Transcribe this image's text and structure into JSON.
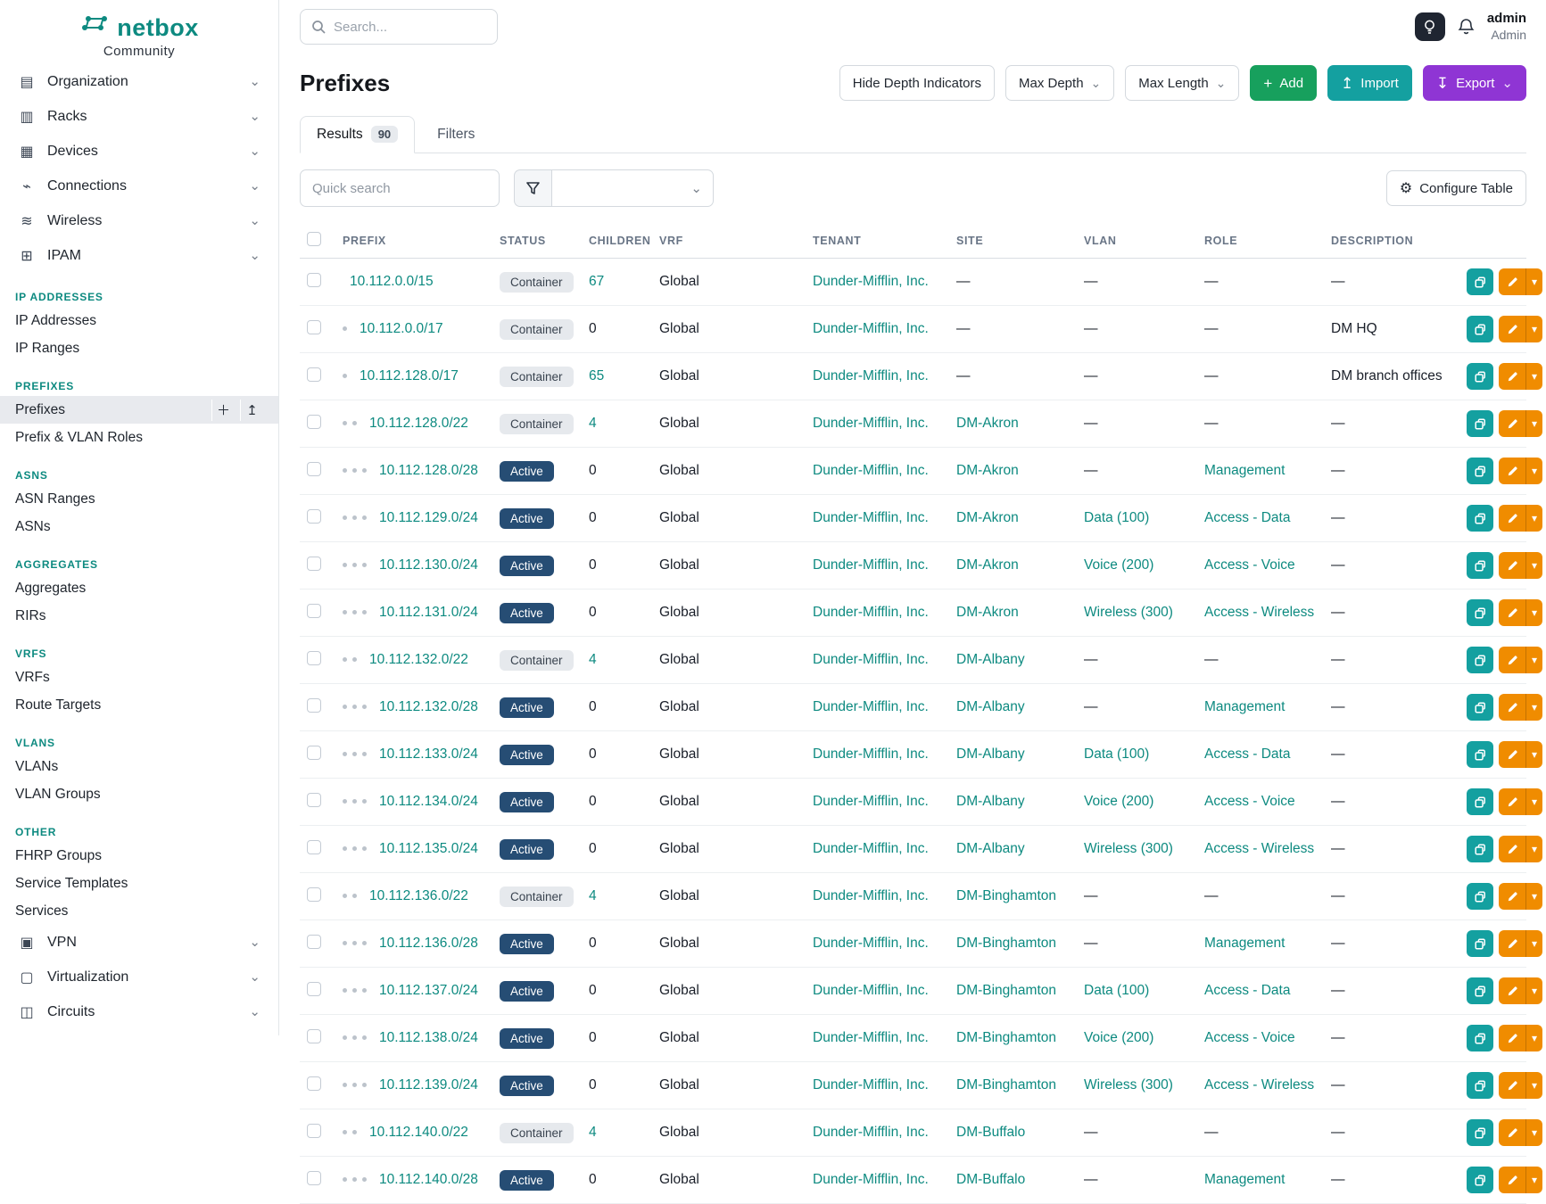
{
  "brand": {
    "name": "netbox",
    "tagline": "Community"
  },
  "topbar": {
    "search_placeholder": "Search...",
    "user_name": "admin",
    "user_role": "Admin"
  },
  "sidebar": {
    "nav_top": [
      {
        "label": "Organization",
        "icon": "organization"
      },
      {
        "label": "Racks",
        "icon": "racks"
      },
      {
        "label": "Devices",
        "icon": "devices"
      },
      {
        "label": "Connections",
        "icon": "connections"
      },
      {
        "label": "Wireless",
        "icon": "wireless"
      },
      {
        "label": "IPAM",
        "icon": "ipam"
      }
    ],
    "sections": [
      {
        "header": "IP ADDRESSES",
        "items": [
          {
            "label": "IP Addresses"
          },
          {
            "label": "IP Ranges"
          }
        ]
      },
      {
        "header": "PREFIXES",
        "items": [
          {
            "label": "Prefixes",
            "active": true
          },
          {
            "label": "Prefix & VLAN Roles"
          }
        ]
      },
      {
        "header": "ASNS",
        "items": [
          {
            "label": "ASN Ranges"
          },
          {
            "label": "ASNs"
          }
        ]
      },
      {
        "header": "AGGREGATES",
        "items": [
          {
            "label": "Aggregates"
          },
          {
            "label": "RIRs"
          }
        ]
      },
      {
        "header": "VRFS",
        "items": [
          {
            "label": "VRFs"
          },
          {
            "label": "Route Targets"
          }
        ]
      },
      {
        "header": "VLANS",
        "items": [
          {
            "label": "VLANs"
          },
          {
            "label": "VLAN Groups"
          }
        ]
      },
      {
        "header": "OTHER",
        "items": [
          {
            "label": "FHRP Groups"
          },
          {
            "label": "Service Templates"
          },
          {
            "label": "Services"
          }
        ]
      }
    ],
    "nav_bottom": [
      {
        "label": "VPN",
        "icon": "vpn"
      },
      {
        "label": "Virtualization",
        "icon": "virtualization"
      },
      {
        "label": "Circuits",
        "icon": "circuits"
      }
    ],
    "icon_glyphs": {
      "organization": "▤",
      "racks": "▥",
      "devices": "▦",
      "connections": "⌁",
      "wireless": "≋",
      "ipam": "⊞",
      "vpn": "▣",
      "virtualization": "▢",
      "circuits": "◫"
    }
  },
  "page": {
    "title": "Prefixes",
    "hide_depth_label": "Hide Depth Indicators",
    "max_depth_label": "Max Depth",
    "max_length_label": "Max Length",
    "add_label": "Add",
    "import_label": "Import",
    "export_label": "Export",
    "tabs": {
      "results_label": "Results",
      "results_count": "90",
      "filters_label": "Filters"
    },
    "quick_search_placeholder": "Quick search",
    "configure_table_label": "Configure Table"
  },
  "table": {
    "columns": [
      "PREFIX",
      "STATUS",
      "CHILDREN",
      "VRF",
      "TENANT",
      "SITE",
      "VLAN",
      "ROLE",
      "DESCRIPTION"
    ],
    "rows": [
      {
        "depth": 0,
        "prefix": "10.112.0.0/15",
        "status": "Container",
        "children": "67",
        "vrf": "Global",
        "tenant": "Dunder-Mifflin, Inc.",
        "site": "—",
        "vlan": "—",
        "role": "—",
        "description": "—"
      },
      {
        "depth": 1,
        "prefix": "10.112.0.0/17",
        "status": "Container",
        "children": "0",
        "vrf": "Global",
        "tenant": "Dunder-Mifflin, Inc.",
        "site": "—",
        "vlan": "—",
        "role": "—",
        "description": "DM HQ"
      },
      {
        "depth": 1,
        "prefix": "10.112.128.0/17",
        "status": "Container",
        "children": "65",
        "vrf": "Global",
        "tenant": "Dunder-Mifflin, Inc.",
        "site": "—",
        "vlan": "—",
        "role": "—",
        "description": "DM branch offices"
      },
      {
        "depth": 2,
        "prefix": "10.112.128.0/22",
        "status": "Container",
        "children": "4",
        "vrf": "Global",
        "tenant": "Dunder-Mifflin, Inc.",
        "site": "DM-Akron",
        "vlan": "—",
        "role": "—",
        "description": "—"
      },
      {
        "depth": 3,
        "prefix": "10.112.128.0/28",
        "status": "Active",
        "children": "0",
        "vrf": "Global",
        "tenant": "Dunder-Mifflin, Inc.",
        "site": "DM-Akron",
        "vlan": "—",
        "role": "Management",
        "description": "—"
      },
      {
        "depth": 3,
        "prefix": "10.112.129.0/24",
        "status": "Active",
        "children": "0",
        "vrf": "Global",
        "tenant": "Dunder-Mifflin, Inc.",
        "site": "DM-Akron",
        "vlan": "Data (100)",
        "role": "Access - Data",
        "description": "—"
      },
      {
        "depth": 3,
        "prefix": "10.112.130.0/24",
        "status": "Active",
        "children": "0",
        "vrf": "Global",
        "tenant": "Dunder-Mifflin, Inc.",
        "site": "DM-Akron",
        "vlan": "Voice (200)",
        "role": "Access - Voice",
        "description": "—"
      },
      {
        "depth": 3,
        "prefix": "10.112.131.0/24",
        "status": "Active",
        "children": "0",
        "vrf": "Global",
        "tenant": "Dunder-Mifflin, Inc.",
        "site": "DM-Akron",
        "vlan": "Wireless (300)",
        "role": "Access - Wireless",
        "description": "—"
      },
      {
        "depth": 2,
        "prefix": "10.112.132.0/22",
        "status": "Container",
        "children": "4",
        "vrf": "Global",
        "tenant": "Dunder-Mifflin, Inc.",
        "site": "DM-Albany",
        "vlan": "—",
        "role": "—",
        "description": "—"
      },
      {
        "depth": 3,
        "prefix": "10.112.132.0/28",
        "status": "Active",
        "children": "0",
        "vrf": "Global",
        "tenant": "Dunder-Mifflin, Inc.",
        "site": "DM-Albany",
        "vlan": "—",
        "role": "Management",
        "description": "—"
      },
      {
        "depth": 3,
        "prefix": "10.112.133.0/24",
        "status": "Active",
        "children": "0",
        "vrf": "Global",
        "tenant": "Dunder-Mifflin, Inc.",
        "site": "DM-Albany",
        "vlan": "Data (100)",
        "role": "Access - Data",
        "description": "—"
      },
      {
        "depth": 3,
        "prefix": "10.112.134.0/24",
        "status": "Active",
        "children": "0",
        "vrf": "Global",
        "tenant": "Dunder-Mifflin, Inc.",
        "site": "DM-Albany",
        "vlan": "Voice (200)",
        "role": "Access - Voice",
        "description": "—"
      },
      {
        "depth": 3,
        "prefix": "10.112.135.0/24",
        "status": "Active",
        "children": "0",
        "vrf": "Global",
        "tenant": "Dunder-Mifflin, Inc.",
        "site": "DM-Albany",
        "vlan": "Wireless (300)",
        "role": "Access - Wireless",
        "description": "—"
      },
      {
        "depth": 2,
        "prefix": "10.112.136.0/22",
        "status": "Container",
        "children": "4",
        "vrf": "Global",
        "tenant": "Dunder-Mifflin, Inc.",
        "site": "DM-Binghamton",
        "vlan": "—",
        "role": "—",
        "description": "—"
      },
      {
        "depth": 3,
        "prefix": "10.112.136.0/28",
        "status": "Active",
        "children": "0",
        "vrf": "Global",
        "tenant": "Dunder-Mifflin, Inc.",
        "site": "DM-Binghamton",
        "vlan": "—",
        "role": "Management",
        "description": "—"
      },
      {
        "depth": 3,
        "prefix": "10.112.137.0/24",
        "status": "Active",
        "children": "0",
        "vrf": "Global",
        "tenant": "Dunder-Mifflin, Inc.",
        "site": "DM-Binghamton",
        "vlan": "Data (100)",
        "role": "Access - Data",
        "description": "—"
      },
      {
        "depth": 3,
        "prefix": "10.112.138.0/24",
        "status": "Active",
        "children": "0",
        "vrf": "Global",
        "tenant": "Dunder-Mifflin, Inc.",
        "site": "DM-Binghamton",
        "vlan": "Voice (200)",
        "role": "Access - Voice",
        "description": "—"
      },
      {
        "depth": 3,
        "prefix": "10.112.139.0/24",
        "status": "Active",
        "children": "0",
        "vrf": "Global",
        "tenant": "Dunder-Mifflin, Inc.",
        "site": "DM-Binghamton",
        "vlan": "Wireless (300)",
        "role": "Access - Wireless",
        "description": "—"
      },
      {
        "depth": 2,
        "prefix": "10.112.140.0/22",
        "status": "Container",
        "children": "4",
        "vrf": "Global",
        "tenant": "Dunder-Mifflin, Inc.",
        "site": "DM-Buffalo",
        "vlan": "—",
        "role": "—",
        "description": "—"
      },
      {
        "depth": 3,
        "prefix": "10.112.140.0/28",
        "status": "Active",
        "children": "0",
        "vrf": "Global",
        "tenant": "Dunder-Mifflin, Inc.",
        "site": "DM-Buffalo",
        "vlan": "—",
        "role": "Management",
        "description": "—"
      }
    ]
  },
  "colors": {
    "accent_teal": "#0d8a80",
    "status_active_bg": "#264d74",
    "status_container_bg": "#e6e9ed",
    "add_green": "#17a05d",
    "import_teal": "#14a0a0",
    "export_purple": "#8f35d4",
    "edit_orange": "#f08c00"
  }
}
